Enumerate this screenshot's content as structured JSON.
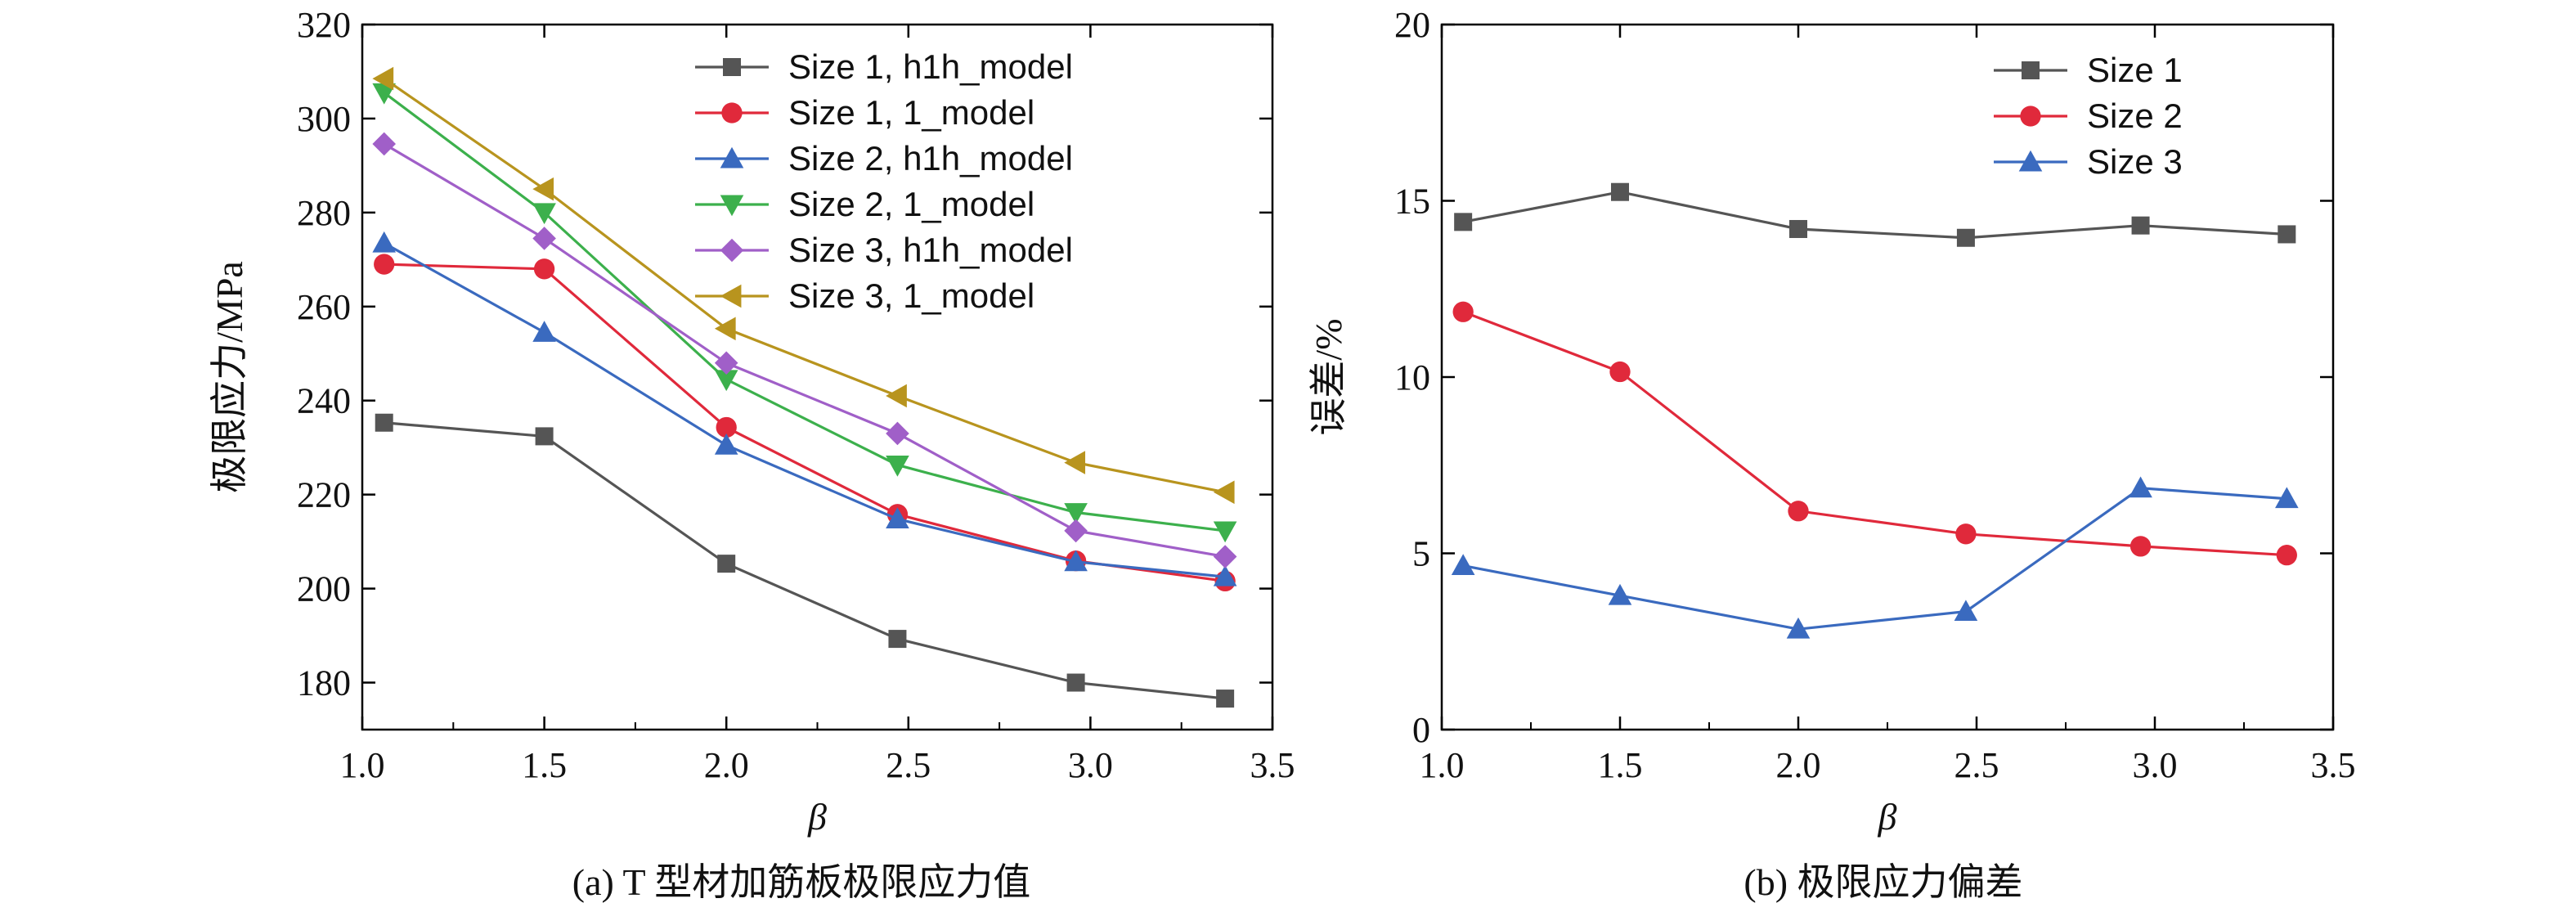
{
  "chart_data": [
    {
      "id": "a",
      "type": "line",
      "caption": "(a) T 型材加筋板极限应力值",
      "xlabel": "β",
      "ylabel": "极限应力/MPa",
      "xlim": [
        1.0,
        3.5
      ],
      "ylim": [
        170,
        320
      ],
      "xticks": [
        "1.0",
        "1.5",
        "2.0",
        "2.5",
        "3.0",
        "3.5"
      ],
      "yticks": [
        "180",
        "200",
        "220",
        "240",
        "260",
        "280",
        "300",
        "320"
      ],
      "grid": false,
      "legend_position": "top-right",
      "x": [
        1.06,
        1.5,
        2.0,
        2.47,
        2.96,
        3.37
      ],
      "series": [
        {
          "name": "Size 1, h1h_model",
          "color": "#555555",
          "marker": "square",
          "values": [
            235.3,
            232.4,
            205.3,
            189.3,
            180.0,
            176.6
          ]
        },
        {
          "name": "Size 1, 1_model",
          "color": "#e0293b",
          "marker": "circle",
          "values": [
            269.0,
            268.0,
            234.3,
            215.8,
            205.9,
            201.6
          ]
        },
        {
          "name": "Size 2, h1h_model",
          "color": "#3a6abf",
          "marker": "triangle-up",
          "values": [
            273.5,
            254.5,
            230.5,
            214.8,
            205.7,
            202.5
          ]
        },
        {
          "name": "Size 2, 1_model",
          "color": "#3cb04c",
          "marker": "triangle-down",
          "values": [
            305.5,
            280.0,
            244.5,
            226.3,
            216.2,
            212.3
          ]
        },
        {
          "name": "Size 3, h1h_model",
          "color": "#a05fc8",
          "marker": "diamond",
          "values": [
            294.6,
            274.5,
            248.0,
            233.0,
            212.3,
            206.8
          ]
        },
        {
          "name": "Size 3, 1_model",
          "color": "#b8941e",
          "marker": "triangle-left",
          "values": [
            308.5,
            285.0,
            255.3,
            241.0,
            226.8,
            220.5
          ]
        }
      ]
    },
    {
      "id": "b",
      "type": "line",
      "caption": "(b) 极限应力偏差",
      "xlabel": "β",
      "ylabel": "误差/%",
      "xlim": [
        1.0,
        3.5
      ],
      "ylim": [
        0,
        20
      ],
      "xticks": [
        "1.0",
        "1.5",
        "2.0",
        "2.5",
        "3.0",
        "3.5"
      ],
      "yticks": [
        "0",
        "5",
        "10",
        "15",
        "20"
      ],
      "grid": false,
      "legend_position": "top-right",
      "x": [
        1.06,
        1.5,
        2.0,
        2.47,
        2.96,
        3.37
      ],
      "series": [
        {
          "name": "Size 1",
          "color": "#555555",
          "marker": "square",
          "values": [
            14.4,
            15.25,
            14.2,
            13.95,
            14.3,
            14.05
          ]
        },
        {
          "name": "Size 2",
          "color": "#e0293b",
          "marker": "circle",
          "values": [
            11.85,
            10.15,
            6.2,
            5.55,
            5.2,
            4.95
          ]
        },
        {
          "name": "Size 3",
          "color": "#3a6abf",
          "marker": "triangle-up",
          "values": [
            4.65,
            3.8,
            2.85,
            3.35,
            6.85,
            6.55
          ]
        }
      ]
    }
  ]
}
